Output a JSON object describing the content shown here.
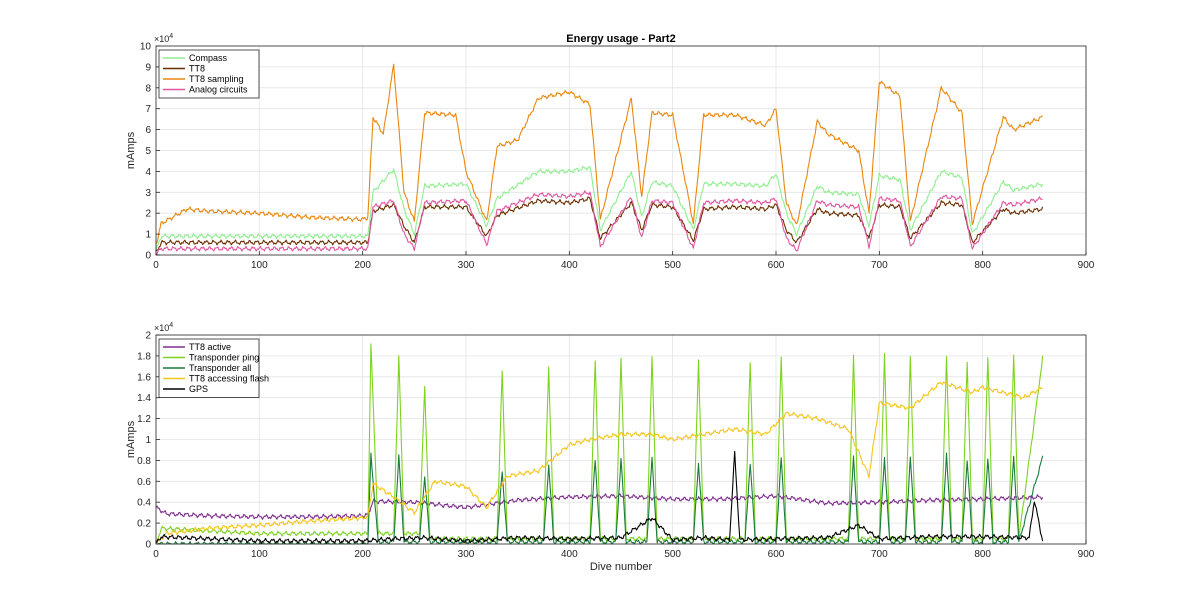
{
  "chart_data": [
    {
      "type": "line",
      "title": "Energy usage - Part2",
      "xlabel": "",
      "ylabel": "mAmps",
      "y_exponent": "×10^4",
      "xlim": [
        0,
        900
      ],
      "ylim": [
        0,
        100000
      ],
      "xticks": [
        0,
        100,
        200,
        300,
        400,
        500,
        600,
        700,
        800,
        900
      ],
      "yticks": [
        0,
        10000,
        20000,
        30000,
        40000,
        50000,
        60000,
        70000,
        80000,
        90000,
        100000
      ],
      "ytick_labels": [
        "0",
        "1",
        "2",
        "3",
        "4",
        "5",
        "6",
        "7",
        "8",
        "9",
        "10"
      ],
      "grid": true,
      "legend_position": "top-left",
      "x_end": 858,
      "series": [
        {
          "name": "Compass",
          "color": "#90ee90",
          "x": [
            0,
            5,
            50,
            100,
            150,
            200,
            205,
            210,
            230,
            240,
            250,
            260,
            300,
            320,
            330,
            370,
            400,
            420,
            430,
            460,
            470,
            480,
            500,
            520,
            530,
            560,
            590,
            600,
            610,
            620,
            640,
            650,
            680,
            690,
            700,
            720,
            730,
            760,
            780,
            790,
            820,
            830,
            858
          ],
          "values": [
            2000,
            9000,
            9000,
            9000,
            9000,
            9000,
            9000,
            30000,
            41000,
            22000,
            10000,
            33000,
            34000,
            14000,
            27000,
            40000,
            40000,
            42000,
            12000,
            40000,
            18000,
            35000,
            33000,
            12000,
            34000,
            34000,
            33000,
            39000,
            20000,
            10000,
            33000,
            30000,
            29000,
            14000,
            38000,
            36000,
            12000,
            40000,
            37000,
            10000,
            35000,
            31000,
            34000
          ]
        },
        {
          "name": "TT8",
          "color": "#6b2e00",
          "x": [
            0,
            5,
            50,
            100,
            150,
            200,
            205,
            210,
            230,
            240,
            250,
            260,
            300,
            320,
            330,
            370,
            400,
            420,
            430,
            460,
            470,
            480,
            500,
            520,
            530,
            560,
            590,
            600,
            610,
            620,
            640,
            650,
            680,
            690,
            700,
            720,
            730,
            760,
            780,
            790,
            820,
            830,
            858
          ],
          "values": [
            1000,
            6000,
            6000,
            6000,
            6000,
            6000,
            6000,
            21000,
            24000,
            14000,
            6000,
            23000,
            23000,
            9000,
            19000,
            26000,
            25000,
            27000,
            8000,
            25000,
            12000,
            24000,
            23000,
            7000,
            22000,
            23000,
            22000,
            24000,
            12000,
            6000,
            22000,
            20000,
            19000,
            8000,
            24000,
            23000,
            8000,
            25000,
            24000,
            6000,
            22000,
            20000,
            22000
          ]
        },
        {
          "name": "TT8 sampling",
          "color": "#e8870f",
          "x": [
            0,
            5,
            30,
            50,
            100,
            150,
            200,
            205,
            210,
            220,
            230,
            240,
            250,
            260,
            290,
            300,
            320,
            330,
            350,
            370,
            400,
            420,
            430,
            460,
            470,
            480,
            500,
            520,
            530,
            560,
            590,
            600,
            610,
            620,
            640,
            650,
            680,
            690,
            700,
            720,
            730,
            760,
            780,
            790,
            820,
            830,
            858
          ],
          "values": [
            5000,
            15000,
            22000,
            21000,
            20000,
            18000,
            17000,
            18000,
            66000,
            58000,
            91000,
            30000,
            16000,
            68000,
            67000,
            40000,
            16000,
            52000,
            55000,
            75000,
            78000,
            72000,
            17000,
            75000,
            28000,
            68000,
            67000,
            15000,
            67000,
            67000,
            62000,
            70000,
            25000,
            14000,
            64000,
            58000,
            50000,
            20000,
            83000,
            76000,
            16000,
            80000,
            68000,
            15000,
            66000,
            60000,
            66000
          ]
        },
        {
          "name": "Analog circuits",
          "color": "#e0569e",
          "x": [
            0,
            5,
            50,
            100,
            150,
            200,
            205,
            210,
            230,
            240,
            250,
            260,
            300,
            320,
            330,
            370,
            400,
            420,
            430,
            460,
            470,
            480,
            500,
            520,
            530,
            560,
            590,
            600,
            610,
            620,
            640,
            650,
            680,
            690,
            700,
            720,
            730,
            760,
            780,
            790,
            820,
            830,
            858
          ],
          "values": [
            500,
            3000,
            3000,
            3000,
            3000,
            3000,
            3000,
            23000,
            26000,
            10000,
            3000,
            25000,
            26000,
            5000,
            21000,
            29000,
            28000,
            30000,
            4000,
            28000,
            8000,
            26000,
            25000,
            3000,
            25000,
            26000,
            25000,
            27000,
            8000,
            2000,
            26000,
            24000,
            23000,
            4000,
            27000,
            26000,
            4000,
            28000,
            27000,
            3000,
            25000,
            24000,
            27000
          ]
        }
      ]
    },
    {
      "type": "line",
      "title": "",
      "xlabel": "Dive number",
      "ylabel": "mAmps",
      "y_exponent": "×10^4",
      "xlim": [
        0,
        900
      ],
      "ylim": [
        0,
        20000
      ],
      "xticks": [
        0,
        100,
        200,
        300,
        400,
        500,
        600,
        700,
        800,
        900
      ],
      "yticks": [
        0,
        2000,
        4000,
        6000,
        8000,
        10000,
        12000,
        14000,
        16000,
        18000,
        20000
      ],
      "ytick_labels": [
        "0",
        "0.2",
        "0.4",
        "0.6",
        "0.8",
        "1",
        "1.2",
        "1.4",
        "1.6",
        "1.8",
        "2"
      ],
      "grid": true,
      "legend_position": "top-left",
      "x_end": 858,
      "series": [
        {
          "name": "TT8 active",
          "color": "#7e2f8e",
          "x": [
            0,
            10,
            50,
            100,
            150,
            200,
            205,
            210,
            250,
            300,
            350,
            400,
            450,
            500,
            550,
            600,
            650,
            700,
            750,
            800,
            858
          ],
          "values": [
            3500,
            2900,
            2700,
            2600,
            2600,
            2700,
            2800,
            4100,
            4000,
            3500,
            4200,
            4500,
            4600,
            4300,
            4300,
            4600,
            3900,
            4000,
            4200,
            4300,
            4500
          ]
        },
        {
          "name": "Transponder ping",
          "color": "#7ed321",
          "x": [
            0,
            5,
            100,
            200,
            205,
            208,
            215,
            230,
            235,
            240,
            255,
            260,
            265,
            300,
            330,
            335,
            340,
            375,
            380,
            385,
            420,
            425,
            430,
            445,
            450,
            455,
            475,
            480,
            485,
            490,
            520,
            525,
            530,
            570,
            575,
            580,
            600,
            605,
            610,
            670,
            675,
            680,
            700,
            705,
            710,
            725,
            730,
            735,
            760,
            765,
            770,
            780,
            785,
            790,
            800,
            805,
            810,
            825,
            830,
            835,
            858
          ],
          "values": [
            0,
            1500,
            1000,
            1000,
            1000,
            19000,
            1000,
            1000,
            18000,
            1000,
            1000,
            15000,
            500,
            500,
            500,
            16500,
            500,
            500,
            17000,
            500,
            500,
            17500,
            500,
            500,
            18000,
            500,
            500,
            18000,
            500,
            500,
            500,
            17500,
            500,
            500,
            17500,
            500,
            500,
            18000,
            500,
            500,
            18000,
            500,
            500,
            18000,
            500,
            500,
            18000,
            500,
            500,
            18000,
            500,
            500,
            17500,
            500,
            500,
            18000,
            500,
            500,
            18000,
            500,
            17800
          ]
        },
        {
          "name": "Transponder all",
          "color": "#1b7a3d",
          "x": [
            0,
            200,
            205,
            208,
            215,
            230,
            235,
            240,
            255,
            260,
            265,
            300,
            330,
            335,
            340,
            375,
            380,
            385,
            420,
            425,
            430,
            445,
            450,
            455,
            475,
            480,
            485,
            520,
            525,
            530,
            570,
            575,
            580,
            600,
            605,
            610,
            670,
            675,
            680,
            700,
            705,
            710,
            725,
            730,
            735,
            760,
            765,
            770,
            780,
            785,
            790,
            800,
            805,
            810,
            825,
            830,
            835,
            858
          ],
          "values": [
            0,
            0,
            0,
            8500,
            200,
            200,
            8300,
            200,
            200,
            6500,
            200,
            200,
            200,
            7000,
            200,
            200,
            7500,
            200,
            200,
            8000,
            200,
            200,
            8200,
            200,
            200,
            8200,
            200,
            200,
            7800,
            200,
            200,
            7800,
            200,
            200,
            8200,
            200,
            200,
            8200,
            200,
            200,
            8200,
            200,
            200,
            8200,
            200,
            200,
            8500,
            200,
            200,
            8000,
            200,
            200,
            8300,
            200,
            200,
            8300,
            200,
            8300
          ]
        },
        {
          "name": "TT8 accessing flash",
          "color": "#f5c518",
          "x": [
            0,
            10,
            50,
            100,
            150,
            200,
            205,
            210,
            230,
            250,
            270,
            300,
            320,
            340,
            370,
            400,
            420,
            450,
            480,
            500,
            530,
            560,
            590,
            610,
            640,
            670,
            690,
            700,
            730,
            760,
            790,
            800,
            820,
            840,
            858
          ],
          "values": [
            0,
            1000,
            1500,
            1800,
            2200,
            2500,
            2600,
            5800,
            4500,
            3000,
            6000,
            5500,
            3500,
            6500,
            7000,
            9500,
            10000,
            10500,
            10500,
            10000,
            10500,
            11000,
            10500,
            12500,
            12000,
            11000,
            6500,
            13500,
            13000,
            15500,
            14500,
            15000,
            14500,
            14000,
            15000
          ]
        },
        {
          "name": "GPS",
          "color": "#000000",
          "x": [
            0,
            5,
            100,
            200,
            230,
            260,
            300,
            350,
            400,
            450,
            480,
            500,
            530,
            555,
            560,
            565,
            600,
            650,
            680,
            700,
            750,
            800,
            845,
            850,
            858
          ],
          "values": [
            0,
            700,
            300,
            300,
            500,
            600,
            300,
            600,
            500,
            600,
            2500,
            400,
            600,
            400,
            8700,
            400,
            500,
            600,
            1800,
            500,
            700,
            700,
            600,
            4200,
            300
          ]
        }
      ]
    }
  ]
}
